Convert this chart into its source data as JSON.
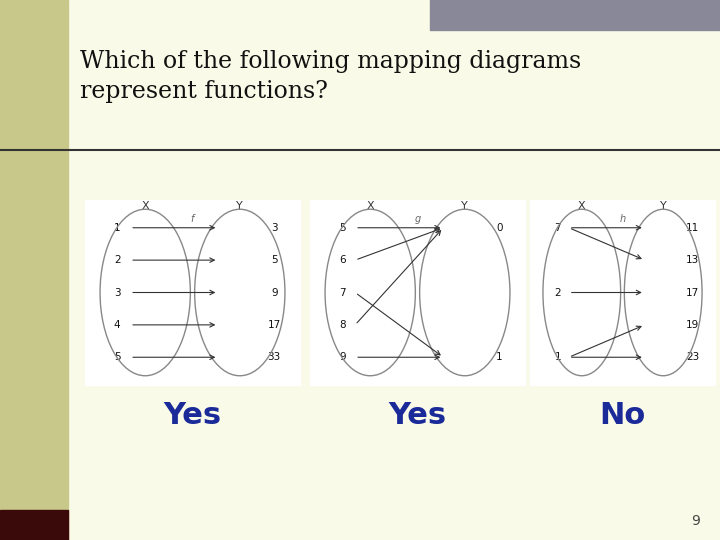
{
  "bg_color": "#FAFAE8",
  "left_panel_color": "#C8C88A",
  "left_bar_color": "#3a0a0a",
  "accent_bar_color": "#888899",
  "title_text": "Which of the following mapping diagrams\nrepresent functions?",
  "title_color": "#111111",
  "title_fontsize": 17,
  "title_fontfamily": "serif",
  "answer_color": "#1a2a99",
  "answer_fontsize": 22,
  "answers": [
    "Yes",
    "Yes",
    "No"
  ],
  "page_number": "9",
  "diagram_bg": "#ffffff",
  "diagrams": [
    {
      "label": "f",
      "x_label": "X",
      "y_label": "Y",
      "left_vals": [
        "1",
        "2",
        "3",
        "4",
        "5"
      ],
      "right_vals": [
        "3",
        "5",
        "9",
        "17",
        "33"
      ],
      "arrows": [
        [
          0,
          0
        ],
        [
          1,
          1
        ],
        [
          2,
          2
        ],
        [
          3,
          3
        ],
        [
          4,
          4
        ]
      ]
    },
    {
      "label": "g",
      "x_label": "X",
      "y_label": "Y",
      "left_vals": [
        "5",
        "6",
        "7",
        "8",
        "9"
      ],
      "right_vals": [
        "0",
        "1"
      ],
      "arrows": [
        [
          0,
          0
        ],
        [
          1,
          0
        ],
        [
          2,
          1
        ],
        [
          3,
          0
        ],
        [
          4,
          1
        ]
      ]
    },
    {
      "label": "h",
      "x_label": "X",
      "y_label": "Y",
      "left_vals": [
        "7",
        "2",
        "1"
      ],
      "right_vals": [
        "11",
        "13",
        "17",
        "19",
        "23"
      ],
      "arrows": [
        [
          0,
          0
        ],
        [
          0,
          1
        ],
        [
          1,
          2
        ],
        [
          2,
          3
        ],
        [
          2,
          4
        ]
      ]
    }
  ]
}
